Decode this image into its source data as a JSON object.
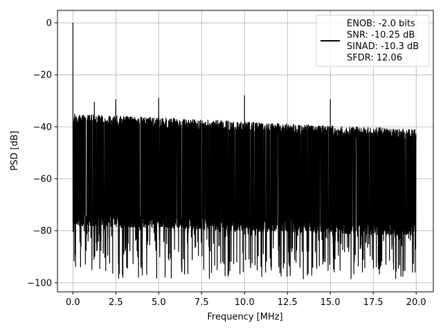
{
  "chart_data": {
    "type": "line",
    "title": "",
    "xlabel": "Frequency [MHz]",
    "ylabel": "PSD [dB]",
    "xlim": [
      -0.9,
      21.0
    ],
    "ylim": [
      -103.5,
      4.8
    ],
    "x_ticks": [
      0.0,
      2.5,
      5.0,
      7.5,
      10.0,
      12.5,
      15.0,
      17.5,
      20.0
    ],
    "x_tick_labels": [
      "0.0",
      "2.5",
      "5.0",
      "7.5",
      "10.0",
      "12.5",
      "15.0",
      "17.5",
      "20.0"
    ],
    "y_ticks": [
      0,
      -20,
      -40,
      -60,
      -80,
      -100
    ],
    "y_tick_labels": [
      "0",
      "−20",
      "−40",
      "−60",
      "−80",
      "−100"
    ],
    "grid": true,
    "legend_position": "top-right",
    "series": [
      {
        "name": "ENOB: -2.0 bits\nSNR: -10.25 dB\nSINAD: -10.3 dB\nSFDR: 12.06",
        "color": "#000000",
        "x_range": [
          0.0,
          20.0
        ],
        "noise_floor_upper_db": [
          -35,
          -41
        ],
        "noise_floor_lower_db": [
          -78,
          -82
        ],
        "noise_min_db": -98.5,
        "spikes": [
          {
            "x": 0.0,
            "y": 0.0
          },
          {
            "x": 1.25,
            "y": -30.5
          },
          {
            "x": 2.5,
            "y": -29.5
          },
          {
            "x": 5.0,
            "y": -29.0
          },
          {
            "x": 10.0,
            "y": -28.0
          },
          {
            "x": 15.0,
            "y": -29.5
          }
        ]
      }
    ]
  }
}
